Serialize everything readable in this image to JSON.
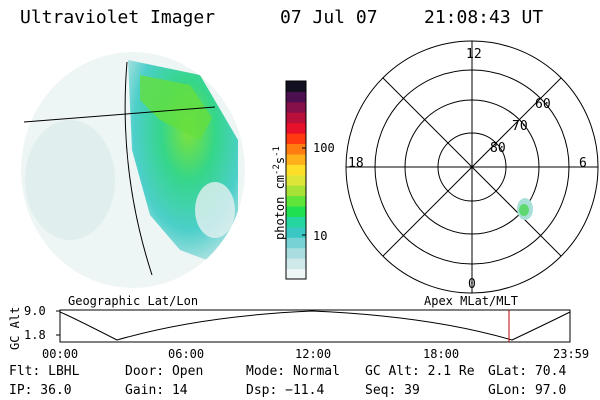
{
  "header": {
    "title": "Ultraviolet Imager",
    "date": "07 Jul 07",
    "time": "21:08:43 UT"
  },
  "colorbar": {
    "label": "photon cm",
    "label_sup1": "-2",
    "label_mid": "s",
    "label_sup2": "-1",
    "ticks": [
      "100",
      "10"
    ],
    "colors": [
      "#eef6f6",
      "#cfe9ea",
      "#a9dde0",
      "#76d2d4",
      "#3bc8c4",
      "#26d6a0",
      "#1fe050",
      "#5fe43a",
      "#a6e336",
      "#dde638",
      "#ffde2a",
      "#ffb01a",
      "#ff7d10",
      "#ff3a10",
      "#e8102a",
      "#b8103a",
      "#86104a",
      "#4c1050",
      "#121020"
    ]
  },
  "polar": {
    "mlt_labels": [
      "12",
      "18",
      "6",
      "0"
    ],
    "lat_labels": [
      "60",
      "70",
      "80"
    ]
  },
  "timeline": {
    "y_title": "GC Alt",
    "y_ticks": [
      "9.0",
      "1.8"
    ],
    "left_label": "Geographic Lat/Lon",
    "right_label": "Apex  MLat/MLT",
    "x_ticks": [
      "00:00",
      "06:00",
      "12:00",
      "18:00",
      "23:59"
    ],
    "marker_color": "#c00000"
  },
  "status": {
    "row1": [
      "Flt: LBHL",
      "Door: Open",
      "Mode: Normal",
      "GC Alt: 2.1 Re",
      "GLat:  70.4"
    ],
    "row2": [
      "IP: 36.0",
      "Gain: 14",
      "Dsp:  −11.4",
      "Seq: 39",
      "GLon:  97.0"
    ]
  }
}
